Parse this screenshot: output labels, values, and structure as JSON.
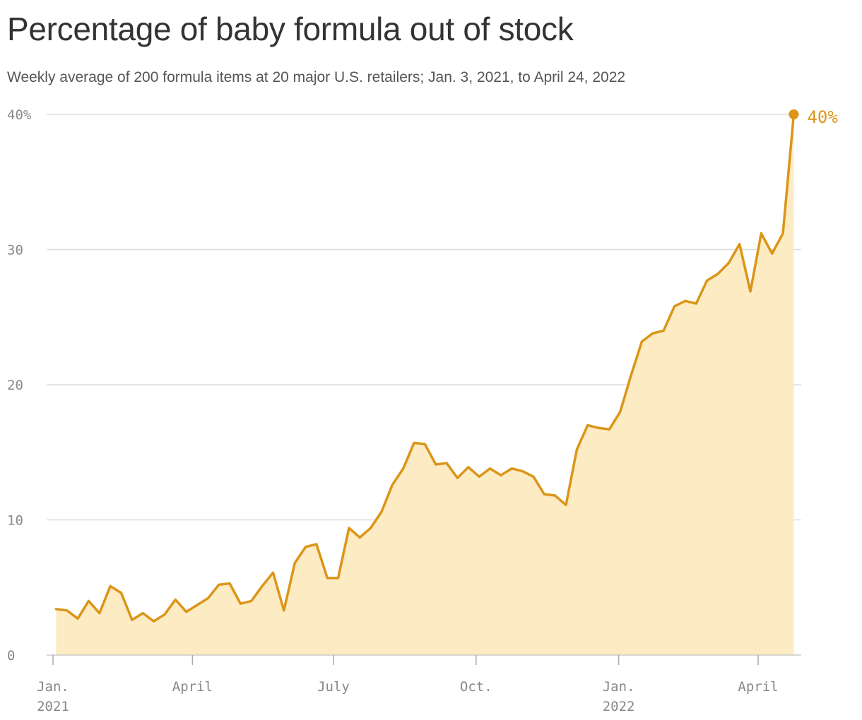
{
  "title": "Percentage of baby formula out of stock",
  "subtitle": "Weekly average of 200 formula items at 20 major U.S. retailers; Jan. 3, 2021, to April 24, 2022",
  "colors": {
    "line": "#DB9517",
    "area": "#FDEBC4",
    "grid": "#DDDDDD",
    "axis_text": "#888888"
  },
  "chart_data": {
    "type": "area",
    "title": "Percentage of baby formula out of stock",
    "subtitle": "Weekly average of 200 formula items at 20 major U.S. retailers; Jan. 3, 2021, to April 24, 2022",
    "xlabel": "",
    "ylabel": "",
    "ylim": [
      0,
      40
    ],
    "yticks": [
      {
        "value": 0,
        "label": "0"
      },
      {
        "value": 10,
        "label": "10"
      },
      {
        "value": 20,
        "label": "20"
      },
      {
        "value": 30,
        "label": "30"
      },
      {
        "value": 40,
        "label": "40%"
      }
    ],
    "xticks": [
      {
        "date": "2021-01-01",
        "label": "Jan.",
        "sublabel": "2021"
      },
      {
        "date": "2021-04-01",
        "label": "April",
        "sublabel": ""
      },
      {
        "date": "2021-07-01",
        "label": "July",
        "sublabel": ""
      },
      {
        "date": "2021-10-01",
        "label": "Oct.",
        "sublabel": ""
      },
      {
        "date": "2022-01-01",
        "label": "Jan.",
        "sublabel": "2022"
      },
      {
        "date": "2022-04-01",
        "label": "April",
        "sublabel": ""
      }
    ],
    "grid": true,
    "end_label": "40%",
    "series": [
      {
        "x": [
          "2021-01-03",
          "2021-01-10",
          "2021-01-17",
          "2021-01-24",
          "2021-01-31",
          "2021-02-07",
          "2021-02-14",
          "2021-02-21",
          "2021-02-28",
          "2021-03-07",
          "2021-03-14",
          "2021-03-21",
          "2021-03-28",
          "2021-04-04",
          "2021-04-11",
          "2021-04-18",
          "2021-04-25",
          "2021-05-02",
          "2021-05-09",
          "2021-05-16",
          "2021-05-23",
          "2021-05-30",
          "2021-06-06",
          "2021-06-13",
          "2021-06-20",
          "2021-06-27",
          "2021-07-04",
          "2021-07-11",
          "2021-07-18",
          "2021-07-25",
          "2021-08-01",
          "2021-08-08",
          "2021-08-15",
          "2021-08-22",
          "2021-08-29",
          "2021-09-05",
          "2021-09-12",
          "2021-09-19",
          "2021-09-26",
          "2021-10-03",
          "2021-10-10",
          "2021-10-17",
          "2021-10-24",
          "2021-10-31",
          "2021-11-07",
          "2021-11-14",
          "2021-11-21",
          "2021-11-28",
          "2021-12-05",
          "2021-12-12",
          "2021-12-19",
          "2021-12-26",
          "2022-01-02",
          "2022-01-09",
          "2022-01-16",
          "2022-01-23",
          "2022-01-30",
          "2022-02-06",
          "2022-02-13",
          "2022-02-20",
          "2022-02-27",
          "2022-03-06",
          "2022-03-13",
          "2022-03-20",
          "2022-03-27",
          "2022-04-03",
          "2022-04-10",
          "2022-04-17",
          "2022-04-24"
        ],
        "values": [
          3.4,
          3.3,
          2.7,
          4.0,
          3.1,
          5.1,
          4.6,
          2.6,
          3.1,
          2.5,
          3.0,
          4.1,
          3.2,
          3.7,
          4.2,
          5.2,
          5.3,
          3.8,
          4.0,
          5.1,
          6.1,
          3.3,
          6.8,
          8.0,
          8.2,
          5.7,
          5.7,
          9.4,
          8.7,
          9.4,
          10.6,
          12.6,
          13.8,
          15.7,
          15.6,
          14.1,
          14.2,
          13.1,
          13.9,
          13.2,
          13.8,
          13.3,
          13.8,
          13.6,
          13.2,
          11.9,
          11.8,
          11.1,
          15.2,
          17.0,
          16.8,
          16.7,
          18.0,
          20.7,
          23.2,
          23.8,
          24.0,
          25.8,
          26.2,
          26.0,
          27.7,
          28.2,
          29.0,
          30.4,
          26.9,
          31.2,
          29.7,
          31.2,
          40.0
        ]
      }
    ]
  }
}
